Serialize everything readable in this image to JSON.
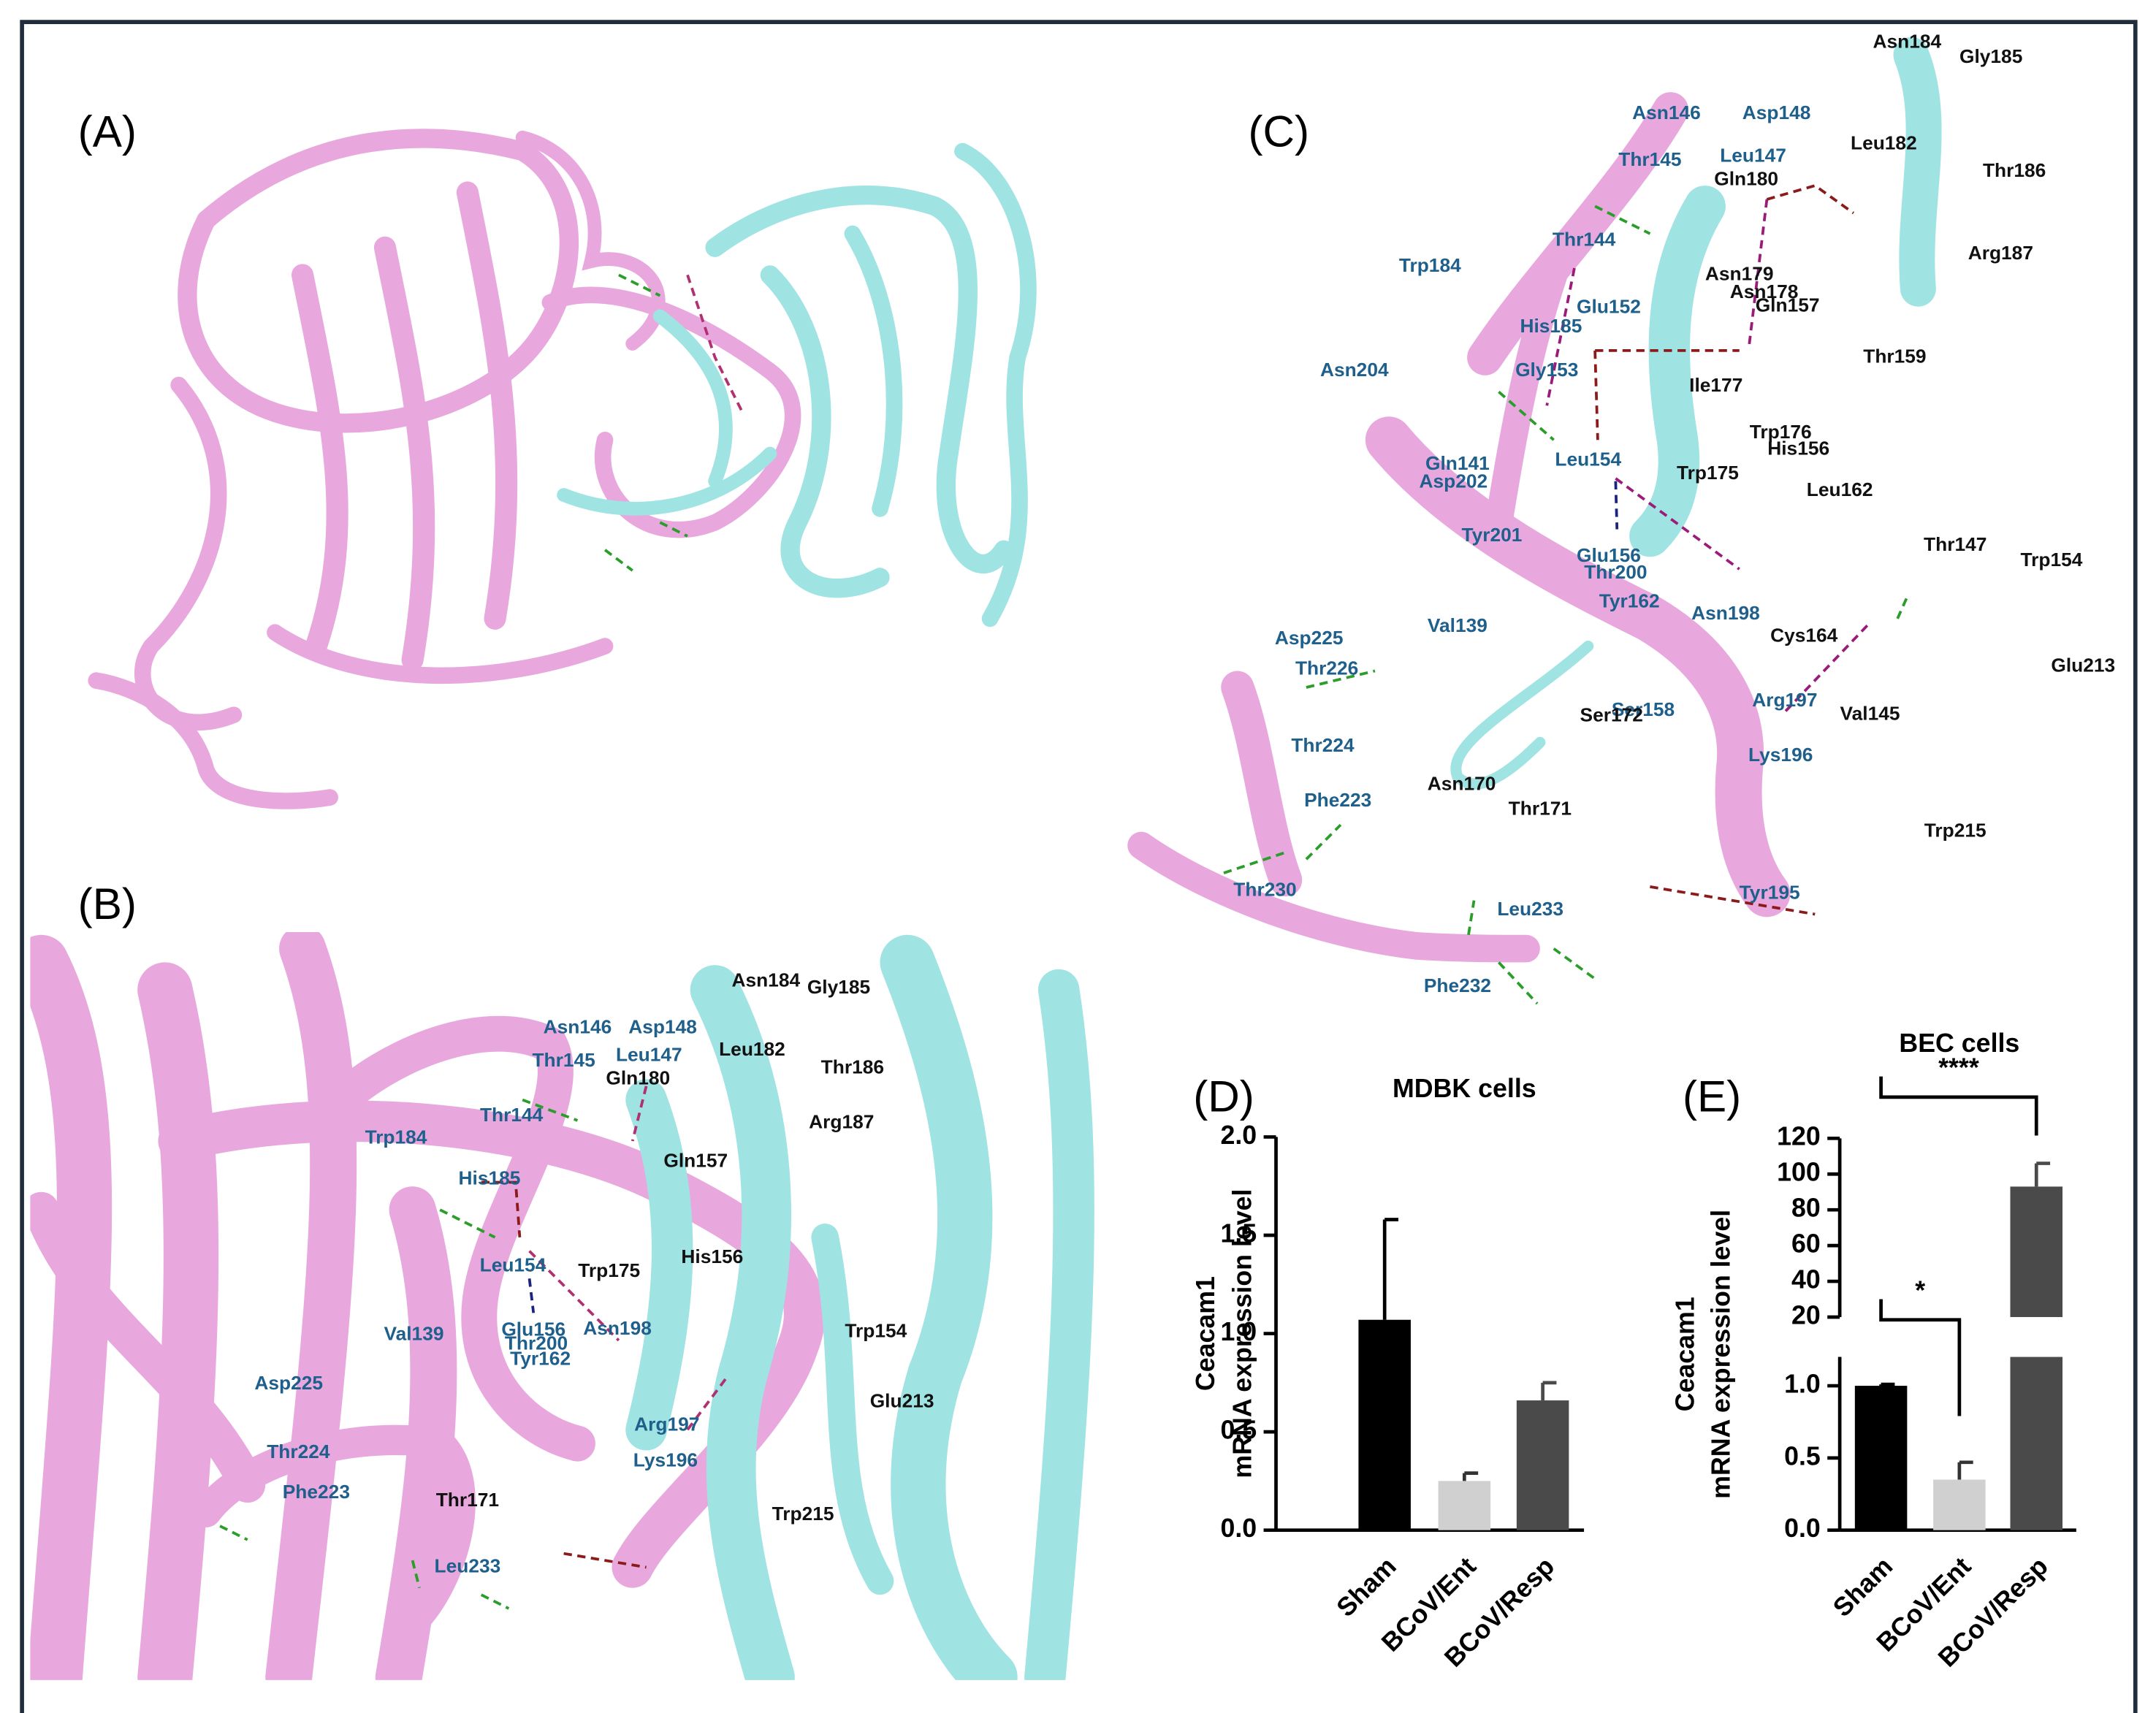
{
  "panels": {
    "a": {
      "label": "(A)"
    },
    "b": {
      "label": "(B)",
      "residues_blue": [
        "Asn146",
        "Asp148",
        "Thr145",
        "Leu147",
        "Thr144",
        "Trp184",
        "His185",
        "Leu154",
        "Glu156",
        "Thr200",
        "Val139",
        "Tyr162",
        "Asn198",
        "Asp225",
        "Thr224",
        "Arg197",
        "Lys196",
        "Phe223",
        "Leu233"
      ],
      "residues_black": [
        "Asn184",
        "Gly185",
        "Leu182",
        "Thr186",
        "Gln180",
        "Arg187",
        "Gln157",
        "Trp175",
        "His156",
        "Trp154",
        "Glu213",
        "Trp215",
        "Thr171"
      ]
    },
    "c": {
      "label": "(C)",
      "residues_blue": [
        "Asn146",
        "Asp148",
        "Thr145",
        "Leu147",
        "Thr144",
        "Trp184",
        "Glu152",
        "His185",
        "Gly153",
        "Asn204",
        "Gln141",
        "Asp202",
        "Leu154",
        "Tyr201",
        "Glu156",
        "Thr200",
        "Tyr162",
        "Asn198",
        "Val139",
        "Asp225",
        "Thr226",
        "Ser158",
        "Arg197",
        "Thr224",
        "Lys196",
        "Phe223",
        "Thr230",
        "Leu233",
        "Phe232",
        "Tyr195"
      ],
      "residues_black": [
        "Asn184",
        "Gly185",
        "Leu182",
        "Thr186",
        "Gln180",
        "Arg187",
        "Asn179",
        "Asn178",
        "Gln157",
        "Thr159",
        "Ile177",
        "Trp176",
        "His156",
        "Trp175",
        "Leu162",
        "Thr147",
        "Trp154",
        "Cys164",
        "Glu213",
        "Val145",
        "Ser172",
        "Asn170",
        "Thr171",
        "Trp215"
      ],
      "color_blue": "#1f5f8b",
      "color_black": "#111111"
    }
  },
  "chart_data": [
    {
      "type": "bar",
      "panel_label": "(D)",
      "title": "MDBK cells",
      "ylabel": [
        "Ceacam1",
        "mRNA expression level"
      ],
      "categories": [
        "Sham",
        "BCoV/Ent",
        "BCoV/Resp"
      ],
      "values": [
        1.07,
        0.25,
        0.66
      ],
      "errors": [
        0.51,
        0.04,
        0.09
      ],
      "colors": [
        "#000000",
        "#d0d0d0",
        "#4a4a4a"
      ],
      "ylim": [
        0,
        2
      ],
      "yticks": [
        {
          "value": 0,
          "label": "0.0"
        },
        {
          "value": 0.5,
          "label": "0.5"
        },
        {
          "value": 1,
          "label": "1.0"
        },
        {
          "value": 1.5,
          "label": "1.5"
        },
        {
          "value": 2,
          "label": "2.0"
        }
      ]
    },
    {
      "type": "bar",
      "panel_label": "(E)",
      "title": "BEC cells",
      "ylabel": [
        "Ceacam1",
        "mRNA expression level"
      ],
      "categories": [
        "Sham",
        "BCoV/Ent",
        "BCoV/Resp"
      ],
      "values": [
        1.0,
        0.35,
        93
      ],
      "errors": [
        0.01,
        0.12,
        13
      ],
      "colors": [
        "#000000",
        "#d0d0d0",
        "#4a4a4a"
      ],
      "segments": [
        {
          "ylim": [
            0,
            1.2
          ],
          "yticks": [
            {
              "value": 0,
              "label": "0.0"
            },
            {
              "value": 0.5,
              "label": "0.5"
            },
            {
              "value": 1,
              "label": "1.0"
            }
          ]
        },
        {
          "ylim": [
            20,
            120
          ],
          "yticks": [
            20,
            40,
            60,
            80,
            100,
            120
          ]
        }
      ],
      "annotations": [
        {
          "text": "*",
          "categories": [
            "Sham",
            "BCoV/Ent"
          ]
        },
        {
          "text": "****",
          "categories": [
            "Sham",
            "BCoV/Resp"
          ]
        }
      ]
    }
  ]
}
